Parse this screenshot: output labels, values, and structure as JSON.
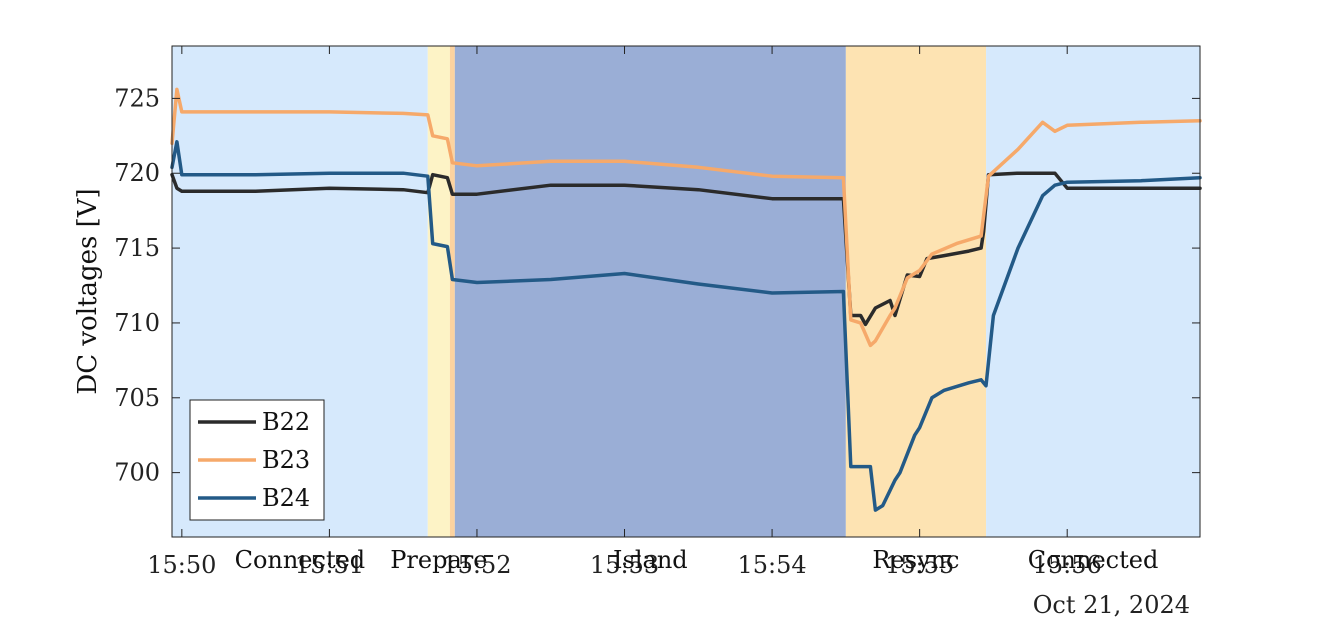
{
  "chart_data": {
    "type": "line",
    "title": "",
    "xlabel": "",
    "ylabel": "DC voltages [V]",
    "date_label": "Oct 21, 2024",
    "x_unit": "time of day (HH:MM, decimal minutes)",
    "xlim": [
      "15:49:56",
      "15:56:54"
    ],
    "ylim": [
      695.7,
      728.5
    ],
    "y_ticks": [
      700,
      705,
      710,
      715,
      720,
      725
    ],
    "x_ticks": [
      "15:50",
      "15:51",
      "15:52",
      "15:53",
      "15:54",
      "15:55",
      "15:56"
    ],
    "grid": false,
    "legend_position": "bottom-left",
    "phases": [
      {
        "label": "Connected",
        "start": "15:49:56",
        "end": "15:51:40",
        "color": "#d6e9fc"
      },
      {
        "label": "Prepare",
        "start": "15:51:40",
        "end": "15:51:49",
        "color": "#fdf3c6"
      },
      {
        "label": "",
        "start": "15:51:49",
        "end": "15:51:51",
        "color": "#fcd3a0"
      },
      {
        "label": "Island",
        "start": "15:51:51",
        "end": "15:54:30",
        "color": "#9aaed6"
      },
      {
        "label": "Resync",
        "start": "15:54:30",
        "end": "15:55:27",
        "color": "#fde3b2"
      },
      {
        "label": "Connected",
        "start": "15:55:27",
        "end": "15:56:54",
        "color": "#d6e9fc"
      }
    ],
    "series": [
      {
        "name": "B22",
        "color": "#2b2b2b",
        "x": [
          "15:49:56",
          "15:49:58",
          "15:50:00",
          "15:50:30",
          "15:51:00",
          "15:51:30",
          "15:51:40",
          "15:51:42",
          "15:51:48",
          "15:51:50",
          "15:52:00",
          "15:52:30",
          "15:53:00",
          "15:53:30",
          "15:54:00",
          "15:54:29",
          "15:54:32",
          "15:54:36",
          "15:54:38",
          "15:54:42",
          "15:54:48",
          "15:54:50",
          "15:54:55",
          "15:55:00",
          "15:55:03",
          "15:55:10",
          "15:55:20",
          "15:55:25",
          "15:55:26",
          "15:55:28",
          "15:55:40",
          "15:55:55",
          "15:56:00",
          "15:56:30",
          "15:56:54"
        ],
        "y": [
          719.9,
          719.0,
          718.8,
          718.8,
          719.0,
          718.9,
          718.7,
          719.9,
          719.7,
          718.6,
          718.6,
          719.2,
          719.2,
          718.9,
          718.3,
          718.3,
          710.5,
          710.5,
          709.9,
          711.0,
          711.5,
          710.5,
          713.2,
          713.1,
          714.3,
          714.5,
          714.8,
          715.0,
          716.1,
          719.9,
          720.0,
          720.0,
          719.0,
          719.0,
          719.0
        ]
      },
      {
        "name": "B23",
        "color": "#f6a96a",
        "x": [
          "15:49:56",
          "15:49:58",
          "15:50:00",
          "15:50:30",
          "15:51:00",
          "15:51:30",
          "15:51:40",
          "15:51:42",
          "15:51:48",
          "15:51:50",
          "15:52:00",
          "15:52:30",
          "15:53:00",
          "15:53:30",
          "15:54:00",
          "15:54:29",
          "15:54:32",
          "15:54:36",
          "15:54:40",
          "15:54:42",
          "15:54:48",
          "15:54:50",
          "15:54:55",
          "15:55:00",
          "15:55:05",
          "15:55:15",
          "15:55:25",
          "15:55:28",
          "15:55:40",
          "15:55:50",
          "15:55:55",
          "15:56:00",
          "15:56:30",
          "15:56:54"
        ],
        "y": [
          722.0,
          725.6,
          724.1,
          724.1,
          724.1,
          724.0,
          723.9,
          722.5,
          722.3,
          720.7,
          720.5,
          720.8,
          720.8,
          720.4,
          719.8,
          719.7,
          710.2,
          710.0,
          708.5,
          708.8,
          710.5,
          711.0,
          713.0,
          713.5,
          714.6,
          715.3,
          715.8,
          719.8,
          721.6,
          723.4,
          722.8,
          723.2,
          723.4,
          723.5
        ]
      },
      {
        "name": "B24",
        "color": "#235a87",
        "x": [
          "15:49:56",
          "15:49:58",
          "15:50:00",
          "15:50:30",
          "15:51:00",
          "15:51:30",
          "15:51:40",
          "15:51:42",
          "15:51:48",
          "15:51:50",
          "15:52:00",
          "15:52:30",
          "15:53:00",
          "15:53:30",
          "15:54:00",
          "15:54:29",
          "15:54:32",
          "15:54:40",
          "15:54:42",
          "15:54:45",
          "15:54:50",
          "15:54:52",
          "15:54:58",
          "15:55:00",
          "15:55:05",
          "15:55:10",
          "15:55:20",
          "15:55:25",
          "15:55:27",
          "15:55:30",
          "15:55:40",
          "15:55:50",
          "15:55:55",
          "15:56:00",
          "15:56:30",
          "15:56:54"
        ],
        "y": [
          720.4,
          722.1,
          719.9,
          719.9,
          720.0,
          720.0,
          719.8,
          715.3,
          715.1,
          712.9,
          712.7,
          712.9,
          713.3,
          712.6,
          712.0,
          712.1,
          700.4,
          700.4,
          697.5,
          697.8,
          699.5,
          700.0,
          702.5,
          703.0,
          705.0,
          705.5,
          706.0,
          706.2,
          705.8,
          710.5,
          715.0,
          718.5,
          719.2,
          719.4,
          719.5,
          719.7
        ]
      }
    ]
  }
}
